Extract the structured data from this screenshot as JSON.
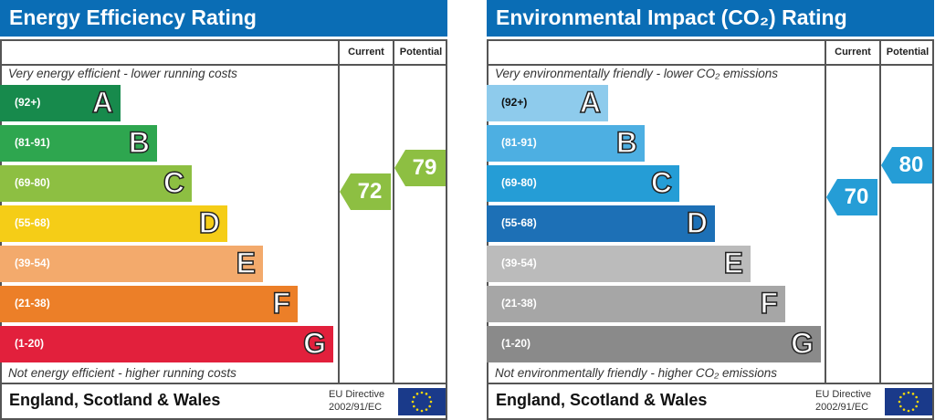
{
  "panels": [
    {
      "title": "Energy Efficiency Rating",
      "col_current": "Current",
      "col_potential": "Potential",
      "top_note": "Very energy efficient - lower running costs",
      "bottom_note": "Not energy efficient - higher running costs",
      "bands": [
        {
          "range": "(92+)",
          "letter": "A",
          "color": "#178a4c"
        },
        {
          "range": "(81-91)",
          "letter": "B",
          "color": "#2ea64f"
        },
        {
          "range": "(69-80)",
          "letter": "C",
          "color": "#8dbf42"
        },
        {
          "range": "(55-68)",
          "letter": "D",
          "color": "#f5cd17"
        },
        {
          "range": "(39-54)",
          "letter": "E",
          "color": "#f3aa6c"
        },
        {
          "range": "(21-38)",
          "letter": "F",
          "color": "#ec7f28"
        },
        {
          "range": "(1-20)",
          "letter": "G",
          "color": "#e2203c"
        }
      ],
      "current": {
        "value": "72",
        "color": "#8dbf42"
      },
      "potential": {
        "value": "79",
        "color": "#8dbf42"
      },
      "region": "England, Scotland & Wales",
      "directive_line1": "EU Directive",
      "directive_line2": "2002/91/EC"
    },
    {
      "title": "Environmental Impact (CO₂) Rating",
      "col_current": "Current",
      "col_potential": "Potential",
      "top_note": "Very environmentally friendly - lower CO₂ emissions",
      "bottom_note": "Not environmentally friendly - higher CO₂ emissions",
      "bands": [
        {
          "range": "(92+)",
          "letter": "A",
          "color": "#8ecbec"
        },
        {
          "range": "(81-91)",
          "letter": "B",
          "color": "#4dafe2"
        },
        {
          "range": "(69-80)",
          "letter": "C",
          "color": "#259dd6"
        },
        {
          "range": "(55-68)",
          "letter": "D",
          "color": "#1d70b6"
        },
        {
          "range": "(39-54)",
          "letter": "E",
          "color": "#bbbbbb"
        },
        {
          "range": "(21-38)",
          "letter": "F",
          "color": "#a6a6a6"
        },
        {
          "range": "(1-20)",
          "letter": "G",
          "color": "#8a8a8a"
        }
      ],
      "current": {
        "value": "70",
        "color": "#259dd6"
      },
      "potential": {
        "value": "80",
        "color": "#259dd6"
      },
      "region": "England, Scotland & Wales",
      "directive_line1": "EU Directive",
      "directive_line2": "2002/91/EC"
    }
  ]
}
